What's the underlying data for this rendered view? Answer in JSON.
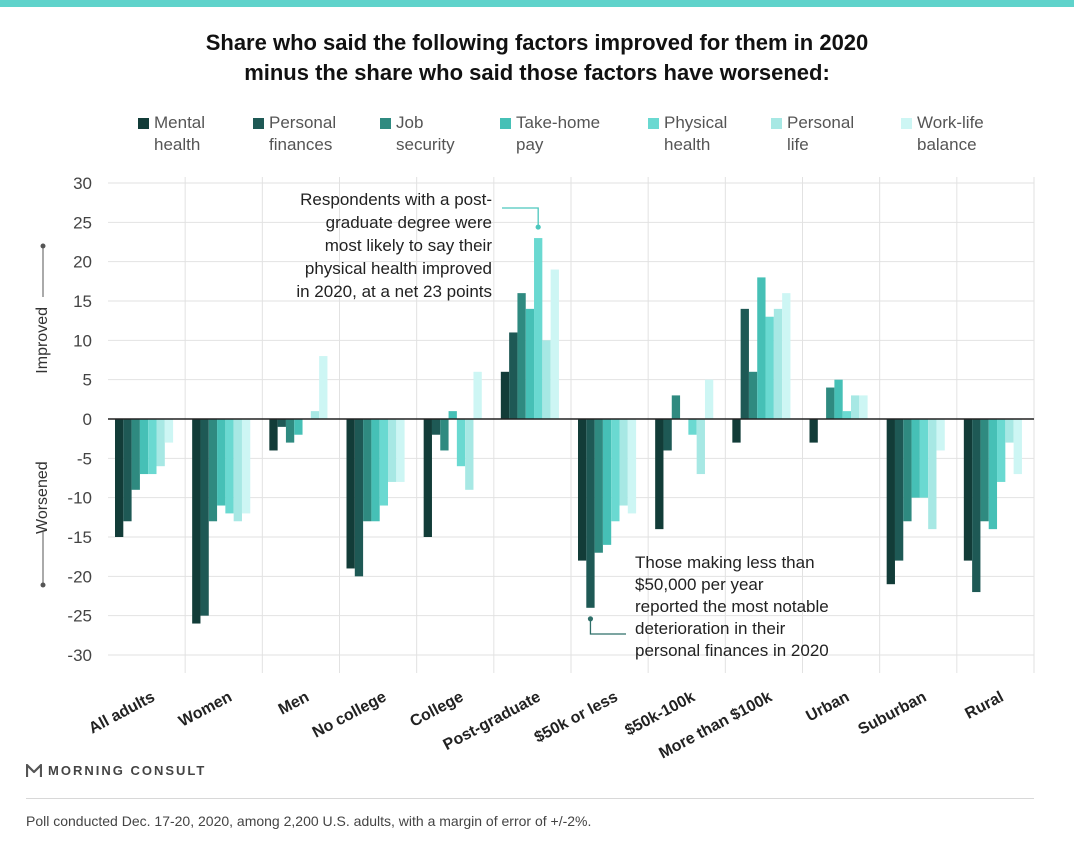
{
  "header": {
    "title_line1": "Share who said the following factors improved for them in 2020",
    "title_line2": "minus the share who said those factors have worsened:"
  },
  "colors": {
    "accent_bar": "#5fd3cb",
    "series": [
      "#123c38",
      "#1e5955",
      "#2f8a80",
      "#46c0b6",
      "#6ad9d1",
      "#a7e8e4",
      "#cdf6f4"
    ]
  },
  "chart_data": {
    "type": "bar",
    "title": "Share who said the following factors improved for them in 2020 minus the share who said those factors have worsened:",
    "ylim": [
      -30,
      30
    ],
    "yticks": [
      30,
      25,
      20,
      15,
      10,
      5,
      0,
      -5,
      -10,
      -15,
      -20,
      -25,
      -30
    ],
    "ylabel_top": "Improved",
    "ylabel_bottom": "Worsened",
    "grid": true,
    "legend_position": "top",
    "categories": [
      "All adults",
      "Women",
      "Men",
      "No college",
      "College",
      "Post-graduate",
      "$50k or less",
      "$50k-100k",
      "More than $100k",
      "Urban",
      "Suburban",
      "Rural"
    ],
    "series": [
      {
        "name": "Mental health",
        "legend_line1": "Mental",
        "legend_line2": "health",
        "values": [
          -15,
          -26,
          -4,
          -19,
          -15,
          6,
          -18,
          -14,
          -3,
          -3,
          -21,
          -18
        ]
      },
      {
        "name": "Personal finances",
        "legend_line1": "Personal",
        "legend_line2": "finances",
        "values": [
          -13,
          -25,
          -1,
          -20,
          -2,
          11,
          -24,
          -4,
          14,
          0,
          -18,
          -22
        ]
      },
      {
        "name": "Job security",
        "legend_line1": "Job",
        "legend_line2": "security",
        "values": [
          -9,
          -13,
          -3,
          -13,
          -4,
          16,
          -17,
          3,
          6,
          4,
          -13,
          -13
        ]
      },
      {
        "name": "Take-home pay",
        "legend_line1": "Take-home",
        "legend_line2": "pay",
        "values": [
          -7,
          -11,
          -2,
          -13,
          1,
          14,
          -16,
          0,
          18,
          5,
          -10,
          -14
        ]
      },
      {
        "name": "Physical health",
        "legend_line1": "Physical",
        "legend_line2": "health",
        "values": [
          -7,
          -12,
          0,
          -11,
          -6,
          23,
          -13,
          -2,
          13,
          1,
          -10,
          -8
        ]
      },
      {
        "name": "Personal life",
        "legend_line1": "Personal",
        "legend_line2": "life",
        "values": [
          -6,
          -13,
          1,
          -8,
          -9,
          10,
          -11,
          -7,
          14,
          3,
          -14,
          -3
        ]
      },
      {
        "name": "Work-life balance",
        "legend_line1": "Work-life",
        "legend_line2": "balance",
        "values": [
          -3,
          -12,
          8,
          -8,
          6,
          19,
          -12,
          5,
          16,
          3,
          -4,
          -7
        ]
      }
    ],
    "annotations": [
      {
        "lines": [
          "Respondents with a post-",
          "graduate degree were",
          "most likely to say their",
          "physical health improved",
          "in 2020, at a net 23 points"
        ],
        "category": "Post-graduate",
        "series": "Physical health"
      },
      {
        "lines": [
          "Those making less than",
          "$50,000 per year",
          "reported the most notable",
          "deterioration in their",
          "personal finances in 2020"
        ],
        "category": "$50k or less",
        "series": "Personal finances"
      }
    ]
  },
  "brand": {
    "name": "MORNING CONSULT"
  },
  "footnote": "Poll conducted Dec. 17-20, 2020, among 2,200 U.S. adults, with a margin of error of +/-2%."
}
